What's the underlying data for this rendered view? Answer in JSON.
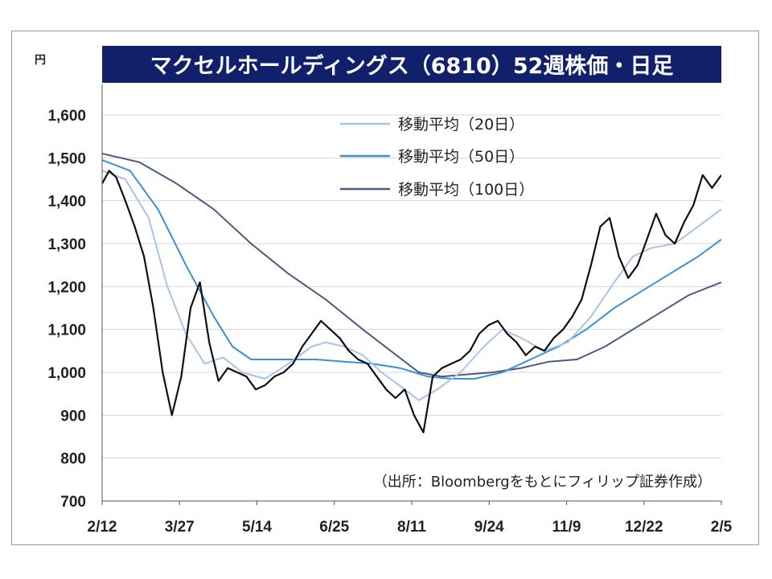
{
  "chart_data": {
    "type": "line",
    "title": "マクセルホールディングス（6810）52週株価・日足",
    "ylabel": "円",
    "ylim": [
      700,
      1600
    ],
    "yticks": [
      "1,600",
      "1,500",
      "1,400",
      "1,300",
      "1,200",
      "1,100",
      "1,000",
      "900",
      "800",
      "700"
    ],
    "xticks": [
      "2/12",
      "3/27",
      "5/14",
      "6/25",
      "8/11",
      "9/24",
      "11/9",
      "12/22",
      "2/5"
    ],
    "source": "（出所：Bloombergをもとにフィリップ証券作成）",
    "legend_position": "top-right",
    "grid": true,
    "series": [
      {
        "role": "price",
        "color": "#111111",
        "x": [
          0,
          3,
          6,
          10,
          14,
          18,
          22,
          26,
          30,
          34,
          38,
          42,
          46,
          50,
          54,
          58,
          62,
          66,
          70,
          74,
          78,
          82,
          86,
          90,
          94,
          98,
          102,
          106,
          110,
          114,
          118,
          122,
          126,
          130,
          134,
          138,
          142,
          146,
          150,
          154,
          158,
          162,
          166,
          170,
          174,
          178,
          182,
          186,
          190,
          194,
          198,
          202,
          206,
          210,
          214,
          218,
          222,
          226,
          230,
          234,
          238,
          242,
          246,
          250,
          254,
          258,
          262,
          266
        ],
        "values": [
          1440,
          1470,
          1455,
          1400,
          1340,
          1270,
          1150,
          1000,
          900,
          990,
          1150,
          1210,
          1070,
          980,
          1010,
          1000,
          990,
          960,
          970,
          990,
          1000,
          1020,
          1060,
          1090,
          1120,
          1100,
          1080,
          1050,
          1030,
          1020,
          990,
          960,
          940,
          960,
          900,
          860,
          990,
          1010,
          1020,
          1030,
          1050,
          1090,
          1110,
          1120,
          1090,
          1070,
          1040,
          1060,
          1050,
          1080,
          1100,
          1130,
          1170,
          1250,
          1340,
          1360,
          1270,
          1220,
          1250,
          1310,
          1370,
          1320,
          1300,
          1350,
          1390,
          1460,
          1430,
          1460
        ]
      },
      {
        "name": "移動平均（20日）",
        "color": "#a9c3e8",
        "x": [
          0,
          10,
          20,
          28,
          36,
          44,
          52,
          60,
          70,
          80,
          90,
          96,
          104,
          112,
          120,
          130,
          136,
          144,
          154,
          164,
          172,
          180,
          190,
          200,
          210,
          220,
          228,
          236,
          246,
          256,
          266
        ],
        "values": [
          1470,
          1450,
          1360,
          1200,
          1090,
          1020,
          1035,
          1000,
          985,
          1020,
          1060,
          1070,
          1060,
          1040,
          1000,
          960,
          935,
          960,
          1000,
          1060,
          1100,
          1080,
          1050,
          1070,
          1130,
          1210,
          1270,
          1290,
          1300,
          1340,
          1380
        ]
      },
      {
        "name": "移動平均（50日）",
        "color": "#3d8fd1",
        "x": [
          0,
          12,
          24,
          36,
          48,
          56,
          64,
          72,
          80,
          92,
          104,
          116,
          128,
          140,
          150,
          160,
          172,
          184,
          196,
          208,
          220,
          232,
          244,
          256,
          266
        ],
        "values": [
          1495,
          1470,
          1380,
          1250,
          1130,
          1060,
          1030,
          1030,
          1030,
          1030,
          1025,
          1020,
          1010,
          990,
          985,
          985,
          1000,
          1030,
          1060,
          1100,
          1150,
          1190,
          1230,
          1270,
          1310
        ]
      },
      {
        "name": "移動平均（100日）",
        "color": "#4a5a80",
        "x": [
          0,
          16,
          32,
          48,
          64,
          80,
          96,
          112,
          124,
          136,
          146,
          156,
          168,
          180,
          192,
          204,
          216,
          228,
          240,
          252,
          266
        ],
        "values": [
          1510,
          1490,
          1440,
          1380,
          1300,
          1230,
          1170,
          1100,
          1050,
          1000,
          990,
          995,
          1000,
          1010,
          1025,
          1030,
          1060,
          1100,
          1140,
          1180,
          1210
        ]
      }
    ]
  }
}
